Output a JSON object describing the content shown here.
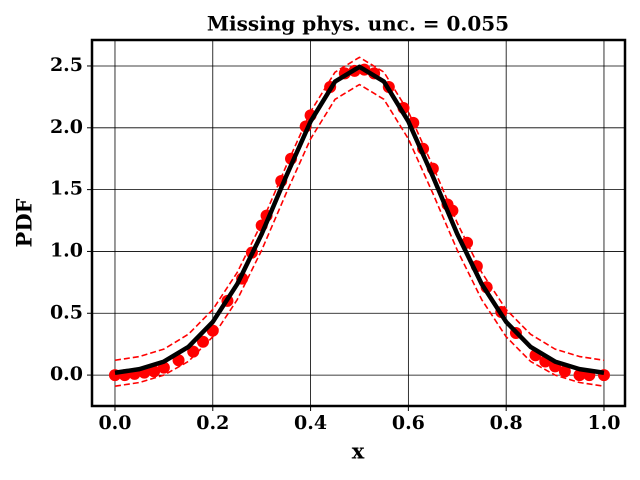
{
  "chart_data": {
    "type": "line",
    "title": "Missing phys. unc. = 0.055",
    "xlabel": "x",
    "ylabel": "PDF",
    "xlim": [
      -0.047,
      1.043
    ],
    "ylim": [
      -0.25,
      2.71
    ],
    "xticks": [
      {
        "value": 0,
        "label": "0.0"
      },
      0.2,
      0.4,
      0.6,
      0.8,
      {
        "value": 1,
        "label": "1.0"
      }
    ],
    "yticks": [
      {
        "value": 0,
        "label": "0.0"
      },
      0.5,
      {
        "value": 1,
        "label": "1.0"
      },
      1.5,
      {
        "value": 2,
        "label": "2.0"
      },
      2.5
    ],
    "grid": true,
    "series": [
      {
        "color": "#ff0000",
        "style": "markers",
        "x": [
          0,
          0.02,
          0.04,
          0.06,
          0.08,
          0.1,
          0.13,
          0.16,
          0.18,
          0.2,
          0.23,
          0.26,
          0.28,
          0.3,
          0.31,
          0.34,
          0.36,
          0.39,
          0.4,
          0.44,
          0.47,
          0.49,
          0.51,
          0.53,
          0.56,
          0.59,
          0.61,
          0.63,
          0.65,
          0.68,
          0.69,
          0.72,
          0.74,
          0.76,
          0.79,
          0.82,
          0.86,
          0.88,
          0.9,
          0.92,
          0.95,
          0.97,
          1.0
        ],
        "values": [
          0.0,
          0.0,
          0.01,
          0.02,
          0.03,
          0.06,
          0.12,
          0.19,
          0.27,
          0.36,
          0.6,
          0.78,
          0.99,
          1.21,
          1.29,
          1.57,
          1.75,
          2.01,
          2.1,
          2.33,
          2.44,
          2.46,
          2.47,
          2.44,
          2.33,
          2.16,
          2.04,
          1.83,
          1.67,
          1.38,
          1.33,
          1.07,
          0.88,
          0.71,
          0.51,
          0.34,
          0.16,
          0.11,
          0.07,
          0.03,
          0.0,
          0.0,
          0.0
        ]
      },
      {
        "color": "#000000",
        "style": "solid",
        "x": [
          0,
          0.05,
          0.1,
          0.15,
          0.2,
          0.25,
          0.3,
          0.35,
          0.4,
          0.45,
          0.5,
          0.55,
          0.6,
          0.65,
          0.7,
          0.75,
          0.8,
          0.85,
          0.9,
          0.95,
          1.0
        ],
        "values": [
          0.019,
          0.048,
          0.109,
          0.228,
          0.43,
          0.736,
          1.141,
          1.607,
          2.051,
          2.374,
          2.493,
          2.374,
          2.051,
          1.607,
          1.141,
          0.736,
          0.43,
          0.228,
          0.109,
          0.048,
          0.019
        ]
      },
      {
        "color": "#ff0000",
        "style": "dashed",
        "x": [
          0,
          0.05,
          0.1,
          0.15,
          0.2,
          0.25,
          0.3,
          0.35,
          0.4,
          0.45,
          0.5,
          0.55,
          0.6,
          0.65,
          0.7,
          0.75,
          0.8,
          0.85,
          0.9,
          0.95,
          1.0
        ],
        "values": [
          0.12,
          0.15,
          0.21,
          0.33,
          0.53,
          0.83,
          1.23,
          1.69,
          2.13,
          2.45,
          2.57,
          2.45,
          2.13,
          1.69,
          1.23,
          0.83,
          0.53,
          0.33,
          0.21,
          0.15,
          0.12
        ]
      },
      {
        "color": "#ff0000",
        "style": "dashed",
        "x": [
          0,
          0.05,
          0.1,
          0.15,
          0.2,
          0.25,
          0.3,
          0.35,
          0.4,
          0.45,
          0.5,
          0.55,
          0.6,
          0.65,
          0.7,
          0.75,
          0.8,
          0.85,
          0.9,
          0.95,
          1.0
        ],
        "values": [
          -0.09,
          -0.06,
          0.0,
          0.11,
          0.31,
          0.61,
          1.01,
          1.47,
          1.91,
          2.23,
          2.35,
          2.23,
          1.91,
          1.47,
          1.01,
          0.61,
          0.31,
          0.11,
          0.0,
          -0.06,
          -0.09
        ]
      }
    ]
  }
}
